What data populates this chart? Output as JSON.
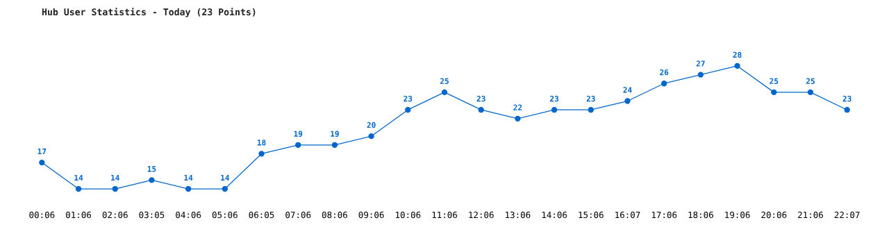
{
  "chart_data": {
    "type": "line",
    "title": "Hub User Statistics - Today (23 Points)",
    "categories": [
      "00:06",
      "01:06",
      "02:06",
      "03:05",
      "04:06",
      "05:06",
      "06:05",
      "07:06",
      "08:06",
      "09:06",
      "10:06",
      "11:06",
      "12:06",
      "13:06",
      "14:06",
      "15:06",
      "16:07",
      "17:06",
      "18:06",
      "19:06",
      "20:06",
      "21:06",
      "22:07"
    ],
    "series": [
      {
        "color": "#0066cc",
        "values": [
          17,
          14,
          14,
          15,
          14,
          14,
          18,
          19,
          19,
          20,
          23,
          25,
          23,
          22,
          23,
          23,
          24,
          26,
          27,
          28,
          25,
          25,
          23
        ]
      }
    ],
    "data_labels": true,
    "marker": "circle",
    "line_style": "solid",
    "grid": false,
    "tick_labels": "x"
  }
}
